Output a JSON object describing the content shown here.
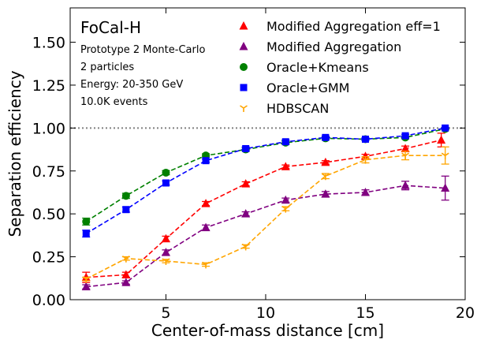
{
  "chart_data": {
    "type": "scatter",
    "xlabel": "Center-of-mass distance [cm]",
    "ylabel": "Separation efficiency",
    "xlim": [
      0.2,
      20.0
    ],
    "ylim": [
      0.0,
      1.7
    ],
    "xticks": [
      5,
      10,
      15,
      20
    ],
    "yticks": [
      0.0,
      0.25,
      0.5,
      0.75,
      1.0,
      1.25,
      1.5
    ],
    "xtick_labels": [
      "5",
      "10",
      "15",
      "20"
    ],
    "ytick_labels": [
      "0.00",
      "0.25",
      "0.50",
      "0.75",
      "1.00",
      "1.25",
      "1.50"
    ],
    "reference_line": {
      "y": 1.0,
      "style": "dotted",
      "color": "#808080"
    },
    "grid": false,
    "legend_placement": "top-right",
    "annotations": {
      "title": "FoCal-H",
      "lines": [
        "Prototype 2 Monte-Carlo",
        "2 particles",
        "Energy: 20-350 GeV",
        "10.0K events"
      ]
    },
    "series": [
      {
        "name": "Modified Aggregation eff=1",
        "color": "#ff0000",
        "marker": "triangle-up",
        "x": [
          1.0,
          3.0,
          5.0,
          7.0,
          9.0,
          11.0,
          13.0,
          15.0,
          17.0,
          18.8
        ],
        "y": [
          0.13,
          0.145,
          0.355,
          0.56,
          0.675,
          0.775,
          0.8,
          0.835,
          0.88,
          0.93
        ],
        "yerr": [
          0.03,
          0.015,
          0.015,
          0.012,
          0.012,
          0.01,
          0.01,
          0.012,
          0.015,
          0.04
        ]
      },
      {
        "name": "Modified Aggregation",
        "color": "#800080",
        "marker": "triangle-up",
        "x": [
          1.0,
          3.0,
          5.0,
          7.0,
          9.0,
          11.0,
          13.0,
          15.0,
          17.0,
          19.0
        ],
        "y": [
          0.075,
          0.1,
          0.275,
          0.42,
          0.5,
          0.58,
          0.615,
          0.625,
          0.665,
          0.65
        ],
        "yerr": [
          0.012,
          0.01,
          0.015,
          0.015,
          0.012,
          0.012,
          0.015,
          0.015,
          0.025,
          0.07
        ]
      },
      {
        "name": "Oracle+Kmeans",
        "color": "#008000",
        "marker": "circle",
        "x": [
          1.0,
          3.0,
          5.0,
          7.0,
          9.0,
          11.0,
          13.0,
          15.0,
          17.0,
          19.0
        ],
        "y": [
          0.455,
          0.605,
          0.74,
          0.84,
          0.875,
          0.915,
          0.94,
          0.935,
          0.945,
          0.995
        ],
        "yerr": [
          0.02,
          0.015,
          0.012,
          0.01,
          0.01,
          0.01,
          0.008,
          0.008,
          0.008,
          0.005
        ]
      },
      {
        "name": "Oracle+GMM",
        "color": "#0000ff",
        "marker": "square",
        "x": [
          1.0,
          3.0,
          5.0,
          7.0,
          9.0,
          11.0,
          13.0,
          15.0,
          17.0,
          19.0
        ],
        "y": [
          0.385,
          0.525,
          0.68,
          0.81,
          0.88,
          0.92,
          0.945,
          0.935,
          0.955,
          1.0
        ],
        "yerr": [
          0.02,
          0.015,
          0.012,
          0.01,
          0.01,
          0.01,
          0.008,
          0.008,
          0.008,
          0.004
        ]
      },
      {
        "name": "HDBSCAN",
        "color": "#ffa500",
        "marker": "tri-down",
        "x": [
          1.0,
          3.0,
          5.0,
          7.0,
          9.0,
          11.0,
          13.0,
          15.0,
          17.0,
          19.0
        ],
        "y": [
          0.12,
          0.24,
          0.225,
          0.205,
          0.31,
          0.53,
          0.72,
          0.815,
          0.84,
          0.84
        ],
        "yerr": [
          0.01,
          0.01,
          0.01,
          0.01,
          0.01,
          0.012,
          0.015,
          0.018,
          0.025,
          0.05
        ]
      }
    ]
  }
}
